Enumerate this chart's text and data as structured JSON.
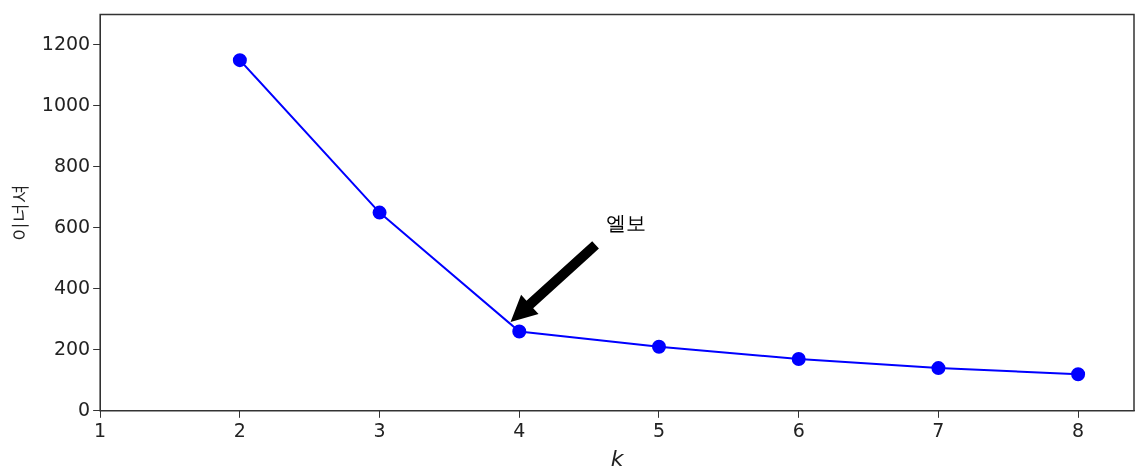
{
  "chart_data": {
    "type": "line",
    "xlabel": "k",
    "ylabel": "이너셔",
    "x": [
      2,
      3,
      4,
      5,
      6,
      7,
      8
    ],
    "series": [
      {
        "color": "#0000ff",
        "values": [
          1150,
          650,
          260,
          210,
          170,
          140,
          120
        ]
      }
    ],
    "xlim": [
      1,
      8.4
    ],
    "ylim": [
      0,
      1300
    ],
    "xticks": [
      1,
      2,
      3,
      4,
      5,
      6,
      7,
      8
    ],
    "yticks": [
      0,
      200,
      400,
      600,
      800,
      1000,
      1200
    ],
    "grid": false,
    "legend": false,
    "marker": "circle",
    "line_style": "solid",
    "annotations": [
      "엘보"
    ]
  }
}
